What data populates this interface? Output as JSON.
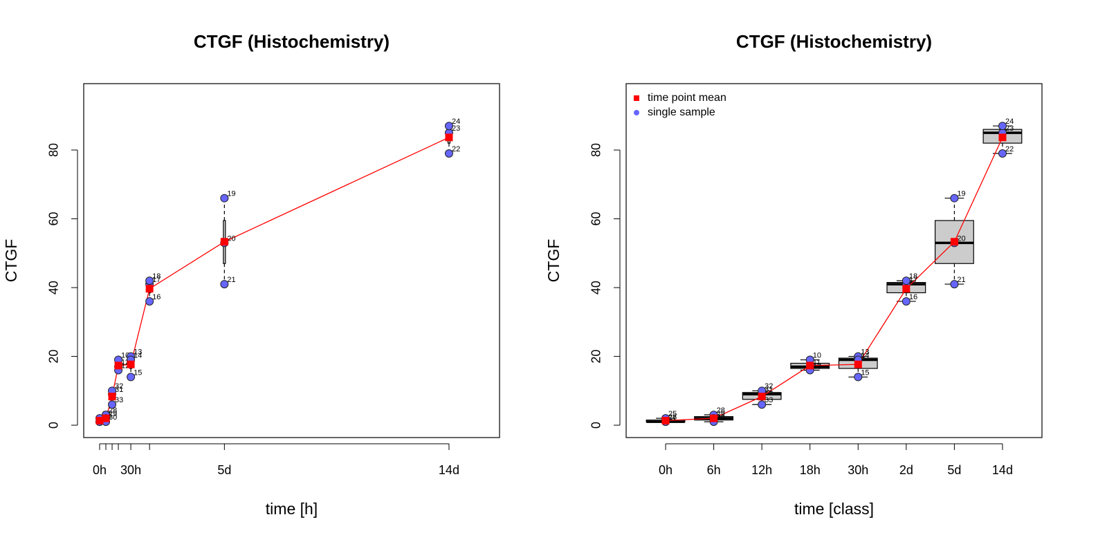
{
  "chart_data": [
    {
      "type": "line",
      "title": "CTGF (Histochemistry)",
      "xlabel": "time [h]",
      "ylabel": "CTGF",
      "xlim": [
        -15.3,
        384.6
      ],
      "ylim": [
        -3.6,
        99.3
      ],
      "xticks": [
        {
          "value": 0,
          "label": "0h"
        },
        {
          "value": 6,
          "label": null
        },
        {
          "value": 12,
          "label": null
        },
        {
          "value": 18,
          "label": null
        },
        {
          "value": 30,
          "label": "30h"
        },
        {
          "value": 48,
          "label": null
        },
        {
          "value": 120,
          "label": "5d"
        },
        {
          "value": 336,
          "label": "14d"
        }
      ],
      "yticks": [
        0,
        20,
        40,
        60,
        80
      ],
      "boxes": [
        {
          "x": 0,
          "low": 1,
          "q1": 1,
          "median": 1,
          "q3": 1.5,
          "high": 2
        },
        {
          "x": 6,
          "low": 1,
          "q1": 1.5,
          "median": 2,
          "q3": 2.5,
          "high": 3
        },
        {
          "x": 12,
          "low": 6,
          "q1": 7.5,
          "median": 9,
          "q3": 9.5,
          "high": 10
        },
        {
          "x": 18,
          "low": 16,
          "q1": 16.5,
          "median": 17,
          "q3": 18,
          "high": 19
        },
        {
          "x": 30,
          "low": 14,
          "q1": 16.5,
          "median": 19,
          "q3": 19.5,
          "high": 20
        },
        {
          "x": 48,
          "low": 36,
          "q1": 38.5,
          "median": 41,
          "q3": 41.5,
          "high": 42
        },
        {
          "x": 120,
          "low": 41,
          "q1": 47,
          "median": 53,
          "q3": 59.5,
          "high": 66
        },
        {
          "x": 336,
          "low": 79,
          "q1": 82,
          "median": 85,
          "q3": 86,
          "high": 87
        }
      ],
      "series": [
        {
          "color": "#ff0000",
          "marker": "square",
          "x": [
            0,
            6,
            12,
            18,
            30,
            48,
            120,
            336
          ],
          "values": [
            1.33,
            2,
            8.33,
            17.33,
            17.67,
            39.67,
            53.33,
            83.67
          ]
        },
        {
          "color": "#6666ff",
          "marker": "circle",
          "x": [
            0,
            0,
            0,
            6,
            6,
            6,
            12,
            12,
            12,
            18,
            18,
            18,
            30,
            30,
            30,
            48,
            48,
            48,
            120,
            120,
            120,
            336,
            336,
            336
          ],
          "values": [
            2,
            1,
            1,
            3,
            2,
            1,
            9,
            10,
            6,
            19,
            17,
            16,
            20,
            19,
            14,
            36,
            41,
            42,
            66,
            53,
            41,
            79,
            85,
            87
          ],
          "point_labels": [
            "25",
            "26",
            "27",
            "28",
            "29",
            "30",
            "31",
            "32",
            "33",
            "10",
            "11",
            "12",
            "13",
            "14",
            "15",
            "16",
            "17",
            "18",
            "19",
            "20",
            "21",
            "22",
            "23",
            "24"
          ]
        }
      ]
    },
    {
      "type": "box",
      "title": "CTGF (Histochemistry)",
      "xlabel": "time [class]",
      "ylabel": "CTGF",
      "ylim": [
        -3.6,
        99.3
      ],
      "yticks": [
        0,
        20,
        40,
        60,
        80
      ],
      "legend": "topleft",
      "categories": [
        "0h",
        "6h",
        "12h",
        "18h",
        "30h",
        "2d",
        "5d",
        "14d"
      ],
      "boxes": [
        {
          "low": 1,
          "q1": 1,
          "median": 1,
          "q3": 1.5,
          "high": 2
        },
        {
          "low": 1,
          "q1": 1.5,
          "median": 2,
          "q3": 2.5,
          "high": 3
        },
        {
          "low": 6,
          "q1": 7.5,
          "median": 9,
          "q3": 9.5,
          "high": 10
        },
        {
          "low": 16,
          "q1": 16.5,
          "median": 17,
          "q3": 18,
          "high": 19
        },
        {
          "low": 14,
          "q1": 16.5,
          "median": 19,
          "q3": 19.5,
          "high": 20
        },
        {
          "low": 36,
          "q1": 38.5,
          "median": 41,
          "q3": 41.5,
          "high": 42
        },
        {
          "low": 41,
          "q1": 47,
          "median": 53,
          "q3": 59.5,
          "high": 66
        },
        {
          "low": 79,
          "q1": 82,
          "median": 85,
          "q3": 86,
          "high": 87
        }
      ],
      "series": [
        {
          "name": "time point mean",
          "color": "#ff0000",
          "marker": "square",
          "values": [
            1.33,
            2,
            8.33,
            17.33,
            17.67,
            39.67,
            53.33,
            83.67
          ]
        },
        {
          "name": "single sample",
          "color": "#6666ff",
          "marker": "circle",
          "x": [
            "0h",
            "0h",
            "0h",
            "6h",
            "6h",
            "6h",
            "12h",
            "12h",
            "12h",
            "18h",
            "18h",
            "18h",
            "30h",
            "30h",
            "30h",
            "2d",
            "2d",
            "2d",
            "5d",
            "5d",
            "5d",
            "14d",
            "14d",
            "14d"
          ],
          "values": [
            2,
            1,
            1,
            3,
            2,
            1,
            9,
            10,
            6,
            19,
            17,
            16,
            20,
            19,
            14,
            36,
            41,
            42,
            66,
            53,
            41,
            79,
            85,
            87
          ],
          "point_labels": [
            "25",
            "26",
            "27",
            "28",
            "29",
            "30",
            "31",
            "32",
            "33",
            "10",
            "11",
            "12",
            "13",
            "14",
            "15",
            "16",
            "17",
            "18",
            "19",
            "20",
            "21",
            "22",
            "23",
            "24"
          ]
        }
      ]
    }
  ]
}
